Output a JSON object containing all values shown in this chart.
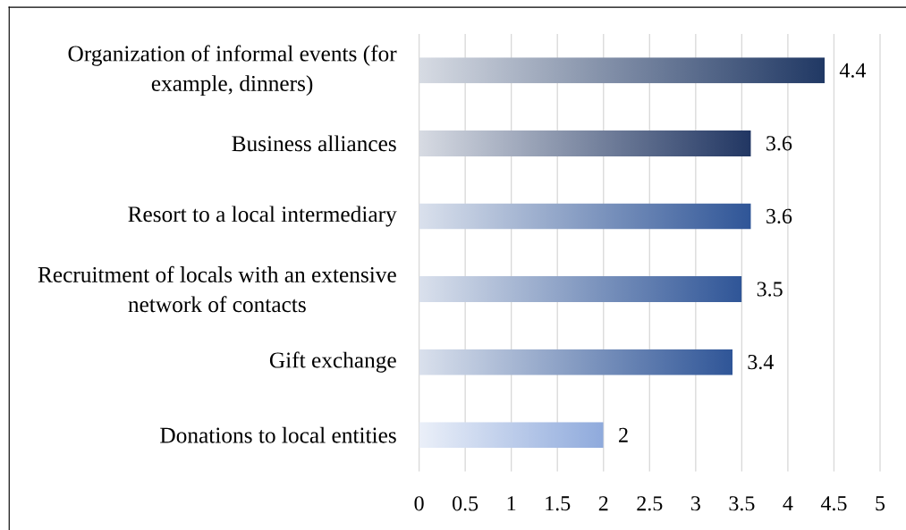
{
  "chart_data": {
    "type": "bar",
    "orientation": "horizontal",
    "categories": [
      "Organization of informal events (for example, dinners)",
      "Business alliances",
      "Resort to a local intermediary",
      "Recruitment of locals with an extensive network of contacts",
      "Gift exchange",
      "Donations to local entities"
    ],
    "values": [
      4.4,
      3.6,
      3.6,
      3.5,
      3.4,
      2
    ],
    "colors": [
      "#203864",
      "#213662",
      "#2f5597",
      "#2f5597",
      "#2f5597",
      "#8faadc"
    ],
    "xlim": [
      0,
      5
    ],
    "xticks": [
      0,
      0.5,
      1,
      1.5,
      2,
      2.5,
      3,
      3.5,
      4,
      4.5,
      5
    ],
    "grid": "x",
    "data_labels": true
  }
}
